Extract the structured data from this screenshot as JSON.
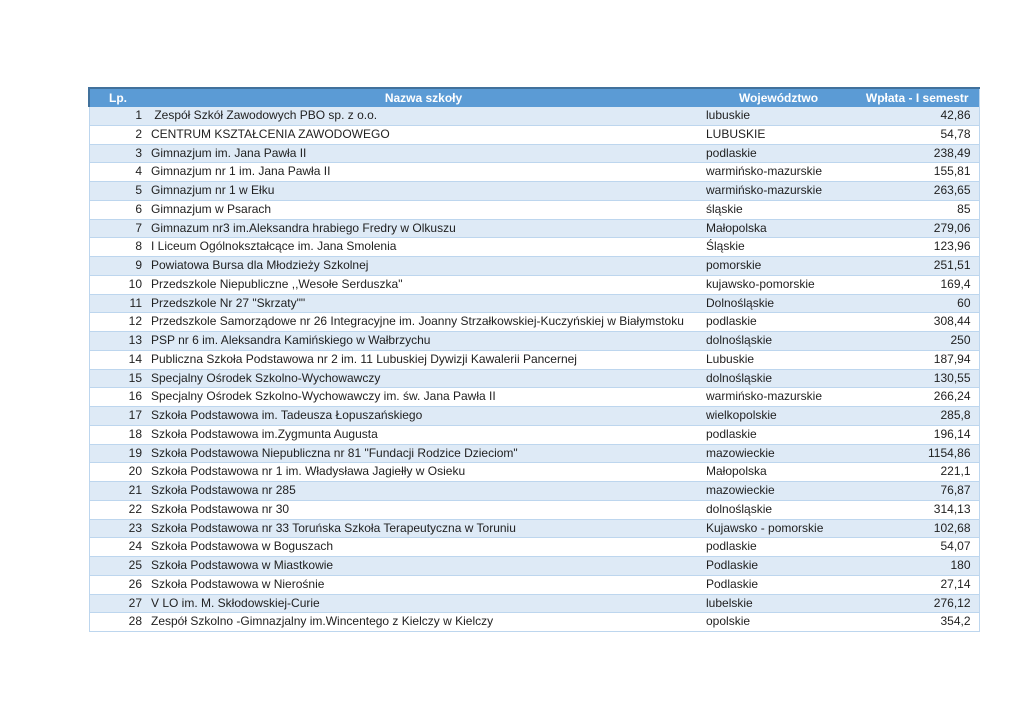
{
  "table": {
    "columns": [
      "Lp.",
      "Nazwa szkoły",
      "Województwo",
      "Wpłata - I semestr"
    ],
    "colors": {
      "header_background": "#5B9BD5",
      "header_text": "#FFFFFF",
      "header_top_border": "#41719C",
      "stripe_fill": "#DEEAF6",
      "row_border": "#BDD6EE",
      "body_text": "#1F1F1F"
    },
    "rows": [
      {
        "lp": "1",
        "name": " Zespół Szkół Zawodowych PBO sp. z o.o.",
        "voivodeship": "lubuskie",
        "amount": "42,86"
      },
      {
        "lp": "2",
        "name": "CENTRUM KSZTAŁCENIA ZAWODOWEGO",
        "voivodeship": "LUBUSKIE",
        "amount": "54,78"
      },
      {
        "lp": "3",
        "name": "Gimnazjum im. Jana Pawła II",
        "voivodeship": "podlaskie",
        "amount": "238,49"
      },
      {
        "lp": "4",
        "name": "Gimnazjum nr 1 im. Jana Pawła II",
        "voivodeship": "warmińsko-mazurskie",
        "amount": "155,81"
      },
      {
        "lp": "5",
        "name": "Gimnazjum nr 1 w Ełku",
        "voivodeship": "warmińsko-mazurskie",
        "amount": "263,65"
      },
      {
        "lp": "6",
        "name": "Gimnazjum w Psarach",
        "voivodeship": "śląskie",
        "amount": "85"
      },
      {
        "lp": "7",
        "name": "Gimnazum nr3 im.Aleksandra hrabiego Fredry w Olkuszu",
        "voivodeship": "Małopolska",
        "amount": "279,06"
      },
      {
        "lp": "8",
        "name": "I Liceum Ogólnokształcące im. Jana Smolenia",
        "voivodeship": "Śląskie",
        "amount": "123,96"
      },
      {
        "lp": "9",
        "name": "Powiatowa Bursa dla Młodzieży Szkolnej",
        "voivodeship": "pomorskie",
        "amount": "251,51"
      },
      {
        "lp": "10",
        "name": "Przedszkole Niepubliczne ,,Wesołe Serduszka\"",
        "voivodeship": "kujawsko-pomorskie",
        "amount": "169,4"
      },
      {
        "lp": "11",
        "name": "Przedszkole Nr 27 \"Skrzaty\"\"",
        "voivodeship": "Dolnośląskie",
        "amount": "60"
      },
      {
        "lp": "12",
        "name": "Przedszkole Samorządowe nr 26 Integracyjne im. Joanny Strzałkowskiej-Kuczyńskiej w Białymstoku",
        "voivodeship": "podlaskie",
        "amount": "308,44"
      },
      {
        "lp": "13",
        "name": "PSP nr 6 im. Aleksandra Kamińskiego w Wałbrzychu",
        "voivodeship": "dolnośląskie",
        "amount": "250"
      },
      {
        "lp": "14",
        "name": "Publiczna Szkoła Podstawowa nr 2 im. 11 Lubuskiej Dywizji Kawalerii Pancernej",
        "voivodeship": "Lubuskie",
        "amount": "187,94"
      },
      {
        "lp": "15",
        "name": "Specjalny Ośrodek Szkolno-Wychowawczy",
        "voivodeship": "dolnośląskie",
        "amount": "130,55"
      },
      {
        "lp": "16",
        "name": "Specjalny Ośrodek Szkolno-Wychowawczy im. św. Jana Pawła II",
        "voivodeship": "warmińsko-mazurskie",
        "amount": "266,24"
      },
      {
        "lp": "17",
        "name": "Szkoła Podstawowa im. Tadeusza Łopuszańskiego",
        "voivodeship": "wielkopolskie",
        "amount": "285,8"
      },
      {
        "lp": "18",
        "name": "Szkoła Podstawowa im.Zygmunta Augusta",
        "voivodeship": "podlaskie",
        "amount": "196,14"
      },
      {
        "lp": "19",
        "name": "Szkoła Podstawowa Niepubliczna nr 81 \"Fundacji Rodzice Dzieciom\"",
        "voivodeship": "mazowieckie",
        "amount": "1154,86"
      },
      {
        "lp": "20",
        "name": "Szkoła Podstawowa nr 1 im. Władysława Jagiełły w Osieku",
        "voivodeship": "Małopolska",
        "amount": "221,1"
      },
      {
        "lp": "21",
        "name": "Szkoła Podstawowa nr 285",
        "voivodeship": "mazowieckie",
        "amount": "76,87"
      },
      {
        "lp": "22",
        "name": "Szkoła Podstawowa nr 30",
        "voivodeship": "dolnośląskie",
        "amount": "314,13"
      },
      {
        "lp": "23",
        "name": "Szkoła Podstawowa nr 33 Toruńska Szkoła Terapeutyczna w Toruniu",
        "voivodeship": "Kujawsko - pomorskie",
        "amount": "102,68"
      },
      {
        "lp": "24",
        "name": "Szkoła Podstawowa w Boguszach",
        "voivodeship": "podlaskie",
        "amount": "54,07"
      },
      {
        "lp": "25",
        "name": "Szkoła Podstawowa w Miastkowie",
        "voivodeship": "Podlaskie",
        "amount": "180"
      },
      {
        "lp": "26",
        "name": "Szkoła Podstawowa w Nierośnie",
        "voivodeship": "Podlaskie",
        "amount": "27,14"
      },
      {
        "lp": "27",
        "name": "V LO im. M. Skłodowskiej-Curie",
        "voivodeship": "lubelskie",
        "amount": "276,12"
      },
      {
        "lp": "28",
        "name": "Zespół Szkolno -Gimnazjalny im.Wincentego z Kielczy w Kielczy",
        "voivodeship": "opolskie",
        "amount": "354,2"
      }
    ]
  }
}
